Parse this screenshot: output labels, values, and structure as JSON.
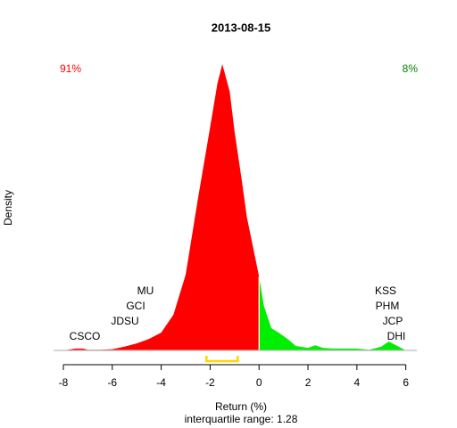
{
  "chart_data": {
    "type": "density",
    "title": "2013-08-15",
    "xlabel": "Return (%)",
    "subtitle": "interquartile range: 1.28",
    "ylabel": "Density",
    "xlim": [
      -8.4,
      6.45
    ],
    "ylim": [
      0,
      0.45
    ],
    "xticks": [
      -8,
      -6,
      -4,
      -2,
      0,
      2,
      4,
      6
    ],
    "series": [
      {
        "color": "#ff0000",
        "x": [
          -8,
          -7.5,
          -7.2,
          -7,
          -6.5,
          -6,
          -5.5,
          -5,
          -4.5,
          -4,
          -3.5,
          -3,
          -2.5,
          -2,
          -1.7,
          -1.5,
          -1.2,
          -1,
          -0.7,
          -0.5,
          -0.2,
          0
        ],
        "values": [
          0,
          0.003,
          0.003,
          0.001,
          0.001,
          0.002,
          0.006,
          0.011,
          0.018,
          0.028,
          0.056,
          0.119,
          0.238,
          0.351,
          0.42,
          0.45,
          0.407,
          0.344,
          0.266,
          0.21,
          0.154,
          0.116
        ]
      },
      {
        "color": "#00ee00",
        "x": [
          0,
          0.2,
          0.5,
          0.8,
          1.2,
          1.5,
          2,
          2.3,
          2.6,
          3,
          4,
          4.5,
          5,
          5.3,
          5.6,
          6
        ],
        "values": [
          0.116,
          0.07,
          0.035,
          0.028,
          0.017,
          0.007,
          0.004,
          0.008,
          0.004,
          0.003,
          0.003,
          0.001,
          0.006,
          0.014,
          0.008,
          0
        ]
      }
    ],
    "iqr": [
      -2.15,
      -0.87
    ],
    "iqr_color": "#ffd700",
    "shares": [
      {
        "text": "91%",
        "color": "#ff0000"
      },
      {
        "text": "8%",
        "color": "#008000"
      }
    ],
    "left_labels": [
      "MU",
      "GCI",
      "JDSU",
      "CSCO"
    ],
    "right_labels": [
      "KSS",
      "PHM",
      "JCP",
      "DHI"
    ]
  }
}
